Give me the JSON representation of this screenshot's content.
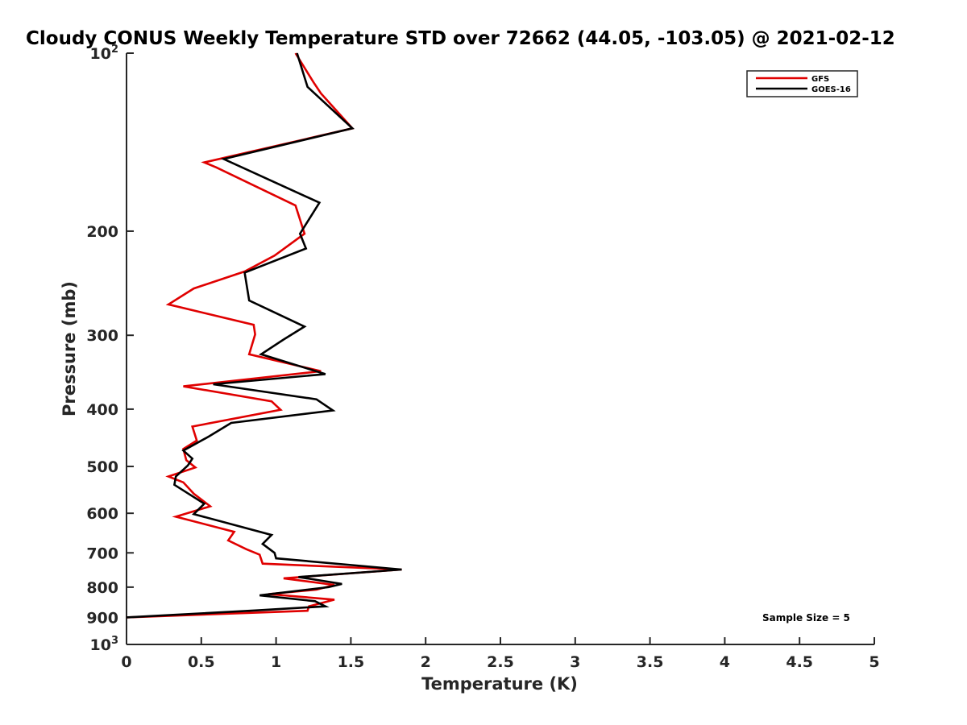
{
  "chart_data": {
    "type": "line",
    "title": "Cloudy CONUS Weekly Temperature STD over 72662 (44.05, -103.05) @ 2021-02-12",
    "xlabel": "Temperature (K)",
    "ylabel": "Pressure (mb)",
    "xlim": [
      0,
      5
    ],
    "ylim": [
      100,
      1000
    ],
    "y_scale": "log",
    "y_reversed": true,
    "x_ticks": [
      0,
      0.5,
      1,
      1.5,
      2,
      2.5,
      3,
      3.5,
      4,
      4.5,
      5
    ],
    "x_tick_labels": [
      "0",
      "0.5",
      "1",
      "1.5",
      "2",
      "2.5",
      "3",
      "3.5",
      "4",
      "4.5",
      "5"
    ],
    "y_ticks": [
      100,
      200,
      300,
      400,
      500,
      600,
      700,
      800,
      900,
      1000
    ],
    "y_tick_labels": [
      {
        "base": "10",
        "exp": "2"
      },
      {
        "base": "200",
        "exp": ""
      },
      {
        "base": "300",
        "exp": ""
      },
      {
        "base": "400",
        "exp": ""
      },
      {
        "base": "500",
        "exp": ""
      },
      {
        "base": "600",
        "exp": ""
      },
      {
        "base": "700",
        "exp": ""
      },
      {
        "base": "800",
        "exp": ""
      },
      {
        "base": "900",
        "exp": ""
      },
      {
        "base": "10",
        "exp": "3"
      }
    ],
    "grid": false,
    "legend_position": "top-right",
    "series": [
      {
        "name": "GFS",
        "color": "#e00000",
        "points": [
          [
            1.13,
            100
          ],
          [
            1.25,
            112
          ],
          [
            1.3,
            117
          ],
          [
            1.51,
            134
          ],
          [
            0.52,
            153
          ],
          [
            0.6,
            156
          ],
          [
            1.13,
            181
          ],
          [
            1.19,
            202
          ],
          [
            0.99,
            220
          ],
          [
            0.79,
            234
          ],
          [
            0.45,
            250
          ],
          [
            0.28,
            266
          ],
          [
            0.85,
            288
          ],
          [
            0.86,
            299
          ],
          [
            0.82,
            323
          ],
          [
            1.3,
            345
          ],
          [
            0.38,
            366
          ],
          [
            0.97,
            388
          ],
          [
            1.03,
            401
          ],
          [
            0.44,
            428
          ],
          [
            0.47,
            452
          ],
          [
            0.38,
            467
          ],
          [
            0.4,
            488
          ],
          [
            0.46,
            502
          ],
          [
            0.28,
            520
          ],
          [
            0.38,
            532
          ],
          [
            0.45,
            556
          ],
          [
            0.56,
            584
          ],
          [
            0.33,
            608
          ],
          [
            0.72,
            645
          ],
          [
            0.68,
            667
          ],
          [
            0.8,
            690
          ],
          [
            0.89,
            705
          ],
          [
            0.91,
            730
          ],
          [
            1.84,
            747
          ],
          [
            1.05,
            773
          ],
          [
            1.39,
            793
          ],
          [
            1.27,
            808
          ],
          [
            0.95,
            822
          ],
          [
            1.39,
            840
          ],
          [
            1.22,
            862
          ],
          [
            1.21,
            877
          ],
          [
            0,
            900
          ]
        ]
      },
      {
        "name": "GOES-16",
        "color": "#000000",
        "points": [
          [
            1.14,
            100
          ],
          [
            1.21,
            114
          ],
          [
            1.51,
            134
          ],
          [
            0.65,
            151
          ],
          [
            1.29,
            179
          ],
          [
            1.16,
            202
          ],
          [
            1.2,
            214
          ],
          [
            0.79,
            235
          ],
          [
            0.82,
            262
          ],
          [
            1.19,
            290
          ],
          [
            1.05,
            305
          ],
          [
            0.9,
            323
          ],
          [
            1.33,
            349
          ],
          [
            0.58,
            363
          ],
          [
            1.27,
            385
          ],
          [
            1.38,
            402
          ],
          [
            0.7,
            422
          ],
          [
            0.55,
            445
          ],
          [
            0.38,
            470
          ],
          [
            0.44,
            485
          ],
          [
            0.41,
            498
          ],
          [
            0.33,
            520
          ],
          [
            0.32,
            537
          ],
          [
            0.52,
            578
          ],
          [
            0.45,
            602
          ],
          [
            0.97,
            653
          ],
          [
            0.91,
            676
          ],
          [
            0.99,
            700
          ],
          [
            1.0,
            715
          ],
          [
            1.84,
            747
          ],
          [
            1.15,
            769
          ],
          [
            1.44,
            790
          ],
          [
            1.35,
            800
          ],
          [
            0.89,
            826
          ],
          [
            1.26,
            845
          ],
          [
            1.33,
            862
          ],
          [
            0.86,
            876
          ],
          [
            0,
            900
          ]
        ]
      }
    ],
    "annotation": "Sample Size = 5"
  }
}
